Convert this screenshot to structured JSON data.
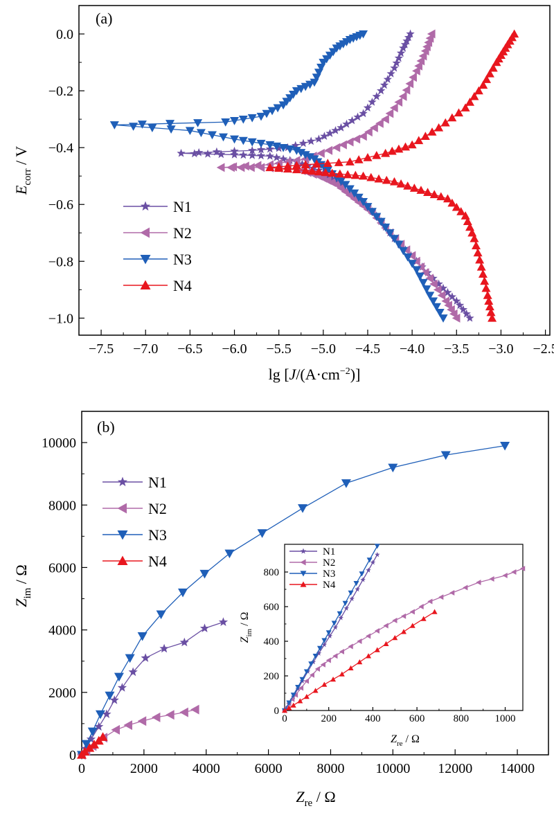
{
  "panel_a": {
    "label": "(a)",
    "ylabel_main": "E",
    "ylabel_sub": "corr",
    "ylabel_tail": " / V",
    "xlabel_pre": "lg [",
    "xlabel_J": "J",
    "xlabel_mid": "/(A·cm",
    "xlabel_sup": "−2",
    "xlabel_post": ")]",
    "xticks": [
      "−7.5",
      "−7.0",
      "−6.5",
      "−6.0",
      "−5.5",
      "−5.0",
      "−4.5",
      "−4.0",
      "−3.5",
      "−3.0",
      "−2.5"
    ],
    "yticks": [
      "0.0",
      "−0.2",
      "−0.4",
      "−0.6",
      "−0.8",
      "−1.0"
    ]
  },
  "panel_b": {
    "label": "(b)",
    "ylabel_main": "Z",
    "ylabel_sub": "im",
    "ylabel_tail": " / Ω",
    "xlabel_main": "Z",
    "xlabel_sub": "re",
    "xlabel_tail": " / Ω",
    "xticks": [
      "0",
      "2000",
      "4000",
      "6000",
      "8000",
      "10000",
      "12000",
      "14000"
    ],
    "yticks": [
      "0",
      "2000",
      "4000",
      "6000",
      "8000",
      "10000"
    ],
    "inset": {
      "xticks": [
        "0",
        "200",
        "400",
        "600",
        "800",
        "1000"
      ],
      "yticks": [
        "0",
        "200",
        "400",
        "600",
        "800"
      ],
      "ylabel_main": "Z",
      "ylabel_sub": "im",
      "ylabel_tail": " / Ω",
      "xlabel_main": "Z",
      "xlabel_sub": "re",
      "xlabel_tail": " / Ω"
    }
  },
  "legend": [
    "N1",
    "N2",
    "N3",
    "N4"
  ],
  "colors": {
    "N1": "#6a4fa3",
    "N2": "#b06aa8",
    "N3": "#1f5fb8",
    "N4": "#e8161e"
  },
  "markers": {
    "N1": "star",
    "N2": "triangle-left",
    "N3": "triangle-down",
    "N4": "triangle-up"
  },
  "chart_data": [
    {
      "type": "line",
      "panel": "(a)",
      "xlabel": "lg [J/(A·cm−2)]",
      "ylabel": "Ecorr / V",
      "xlim": [
        -7.75,
        -2.45
      ],
      "ylim": [
        -1.06,
        0.1
      ],
      "legend_position": "left-middle",
      "series": [
        {
          "name": "N1",
          "points": [
            [
              -4.02,
              0.0
            ],
            [
              -4.1,
              -0.05
            ],
            [
              -4.2,
              -0.12
            ],
            [
              -4.35,
              -0.2
            ],
            [
              -4.55,
              -0.28
            ],
            [
              -4.8,
              -0.33
            ],
            [
              -5.05,
              -0.37
            ],
            [
              -5.4,
              -0.4
            ],
            [
              -5.8,
              -0.41
            ],
            [
              -6.6,
              -0.42
            ],
            [
              -6.0,
              -0.425
            ],
            [
              -5.6,
              -0.43
            ],
            [
              -5.3,
              -0.45
            ],
            [
              -5.05,
              -0.48
            ],
            [
              -4.85,
              -0.52
            ],
            [
              -4.6,
              -0.58
            ],
            [
              -4.4,
              -0.64
            ],
            [
              -4.2,
              -0.72
            ],
            [
              -3.95,
              -0.8
            ],
            [
              -3.7,
              -0.88
            ],
            [
              -3.5,
              -0.94
            ],
            [
              -3.35,
              -1.0
            ]
          ]
        },
        {
          "name": "N2",
          "points": [
            [
              -3.78,
              0.0
            ],
            [
              -3.85,
              -0.06
            ],
            [
              -3.95,
              -0.13
            ],
            [
              -4.1,
              -0.22
            ],
            [
              -4.3,
              -0.3
            ],
            [
              -4.55,
              -0.36
            ],
            [
              -4.85,
              -0.4
            ],
            [
              -5.2,
              -0.44
            ],
            [
              -5.6,
              -0.46
            ],
            [
              -6.15,
              -0.47
            ],
            [
              -5.7,
              -0.47
            ],
            [
              -5.3,
              -0.475
            ],
            [
              -5.05,
              -0.5
            ],
            [
              -4.85,
              -0.53
            ],
            [
              -4.65,
              -0.58
            ],
            [
              -4.45,
              -0.63
            ],
            [
              -4.25,
              -0.7
            ],
            [
              -4.0,
              -0.78
            ],
            [
              -3.8,
              -0.86
            ],
            [
              -3.62,
              -0.94
            ],
            [
              -3.5,
              -1.0
            ]
          ]
        },
        {
          "name": "N3",
          "points": [
            [
              -4.55,
              0.0
            ],
            [
              -4.7,
              -0.02
            ],
            [
              -4.85,
              -0.05
            ],
            [
              -5.0,
              -0.1
            ],
            [
              -5.1,
              -0.17
            ],
            [
              -5.3,
              -0.2
            ],
            [
              -5.45,
              -0.25
            ],
            [
              -5.7,
              -0.29
            ],
            [
              -6.1,
              -0.31
            ],
            [
              -7.35,
              -0.32
            ],
            [
              -6.5,
              -0.34
            ],
            [
              -6.0,
              -0.37
            ],
            [
              -5.6,
              -0.39
            ],
            [
              -5.3,
              -0.41
            ],
            [
              -5.1,
              -0.44
            ],
            [
              -4.95,
              -0.48
            ],
            [
              -4.75,
              -0.53
            ],
            [
              -4.55,
              -0.59
            ],
            [
              -4.35,
              -0.66
            ],
            [
              -4.15,
              -0.74
            ],
            [
              -3.95,
              -0.83
            ],
            [
              -3.8,
              -0.92
            ],
            [
              -3.65,
              -1.0
            ]
          ]
        },
        {
          "name": "N4",
          "points": [
            [
              -2.85,
              0.0
            ],
            [
              -2.95,
              -0.05
            ],
            [
              -3.05,
              -0.1
            ],
            [
              -3.2,
              -0.18
            ],
            [
              -3.4,
              -0.26
            ],
            [
              -3.7,
              -0.33
            ],
            [
              -4.0,
              -0.39
            ],
            [
              -4.3,
              -0.42
            ],
            [
              -4.7,
              -0.45
            ],
            [
              -5.2,
              -0.46
            ],
            [
              -5.6,
              -0.47
            ],
            [
              -5.2,
              -0.48
            ],
            [
              -4.9,
              -0.49
            ],
            [
              -4.55,
              -0.5
            ],
            [
              -4.2,
              -0.52
            ],
            [
              -3.9,
              -0.55
            ],
            [
              -3.6,
              -0.58
            ],
            [
              -3.4,
              -0.64
            ],
            [
              -3.3,
              -0.72
            ],
            [
              -3.22,
              -0.82
            ],
            [
              -3.15,
              -0.92
            ],
            [
              -3.1,
              -1.0
            ]
          ]
        }
      ]
    },
    {
      "type": "line",
      "panel": "(b)",
      "xlabel": "Zre / Ω",
      "ylabel": "Zim / Ω",
      "xlim": [
        0,
        15000
      ],
      "ylim": [
        0,
        11000
      ],
      "legend_position": "top-left",
      "series": [
        {
          "name": "N1",
          "points": [
            [
              0,
              0
            ],
            [
              120,
              200
            ],
            [
              300,
              500
            ],
            [
              550,
              900
            ],
            [
              800,
              1300
            ],
            [
              1050,
              1750
            ],
            [
              1300,
              2150
            ],
            [
              1650,
              2650
            ],
            [
              2050,
              3100
            ],
            [
              2650,
              3400
            ],
            [
              3300,
              3600
            ],
            [
              3950,
              4050
            ],
            [
              4550,
              4250
            ]
          ]
        },
        {
          "name": "N2",
          "points": [
            [
              0,
              0
            ],
            [
              150,
              120
            ],
            [
              350,
              280
            ],
            [
              700,
              550
            ],
            [
              1100,
              800
            ],
            [
              1500,
              950
            ],
            [
              1950,
              1080
            ],
            [
              2400,
              1200
            ],
            [
              2850,
              1280
            ],
            [
              3300,
              1360
            ],
            [
              3650,
              1450
            ]
          ]
        },
        {
          "name": "N3",
          "points": [
            [
              0,
              0
            ],
            [
              150,
              350
            ],
            [
              350,
              750
            ],
            [
              600,
              1300
            ],
            [
              900,
              1900
            ],
            [
              1200,
              2500
            ],
            [
              1550,
              3100
            ],
            [
              1950,
              3800
            ],
            [
              2550,
              4500
            ],
            [
              3250,
              5200
            ],
            [
              3950,
              5800
            ],
            [
              4750,
              6450
            ],
            [
              5800,
              7100
            ],
            [
              7100,
              7900
            ],
            [
              8500,
              8700
            ],
            [
              10000,
              9200
            ],
            [
              11700,
              9600
            ],
            [
              13600,
              9900
            ]
          ]
        },
        {
          "name": "N4",
          "points": [
            [
              0,
              0
            ],
            [
              100,
              100
            ],
            [
              250,
              220
            ],
            [
              400,
              330
            ],
            [
              550,
              450
            ],
            [
              680,
              570
            ]
          ]
        }
      ]
    },
    {
      "type": "line",
      "panel": "(b) inset",
      "xlabel": "Zre / Ω",
      "ylabel": "Zim / Ω",
      "xlim": [
        0,
        1080
      ],
      "ylim": [
        0,
        960
      ],
      "legend_position": "top-left",
      "series": [
        {
          "name": "N1",
          "points": [
            [
              0,
              0
            ],
            [
              40,
              80
            ],
            [
              80,
              170
            ],
            [
              130,
              280
            ],
            [
              180,
              380
            ],
            [
              230,
              480
            ],
            [
              280,
              590
            ],
            [
              330,
              700
            ],
            [
              380,
              810
            ],
            [
              420,
              900
            ]
          ]
        },
        {
          "name": "N2",
          "points": [
            [
              0,
              0
            ],
            [
              20,
              40
            ],
            [
              50,
              90
            ],
            [
              100,
              170
            ],
            [
              150,
              240
            ],
            [
              200,
              290
            ],
            [
              260,
              340
            ],
            [
              340,
              400
            ],
            [
              420,
              460
            ],
            [
              500,
              520
            ],
            [
              580,
              570
            ],
            [
              660,
              630
            ],
            [
              760,
              680
            ],
            [
              880,
              740
            ],
            [
              1000,
              780
            ],
            [
              1080,
              820
            ]
          ]
        },
        {
          "name": "N3",
          "points": [
            [
              0,
              0
            ],
            [
              40,
              90
            ],
            [
              80,
              180
            ],
            [
              120,
              270
            ],
            [
              160,
              360
            ],
            [
              200,
              450
            ],
            [
              250,
              560
            ],
            [
              300,
              680
            ],
            [
              350,
              790
            ],
            [
              420,
              950
            ]
          ]
        },
        {
          "name": "N4",
          "points": [
            [
              0,
              0
            ],
            [
              40,
              30
            ],
            [
              100,
              80
            ],
            [
              180,
              150
            ],
            [
              260,
              210
            ],
            [
              340,
              280
            ],
            [
              420,
              350
            ],
            [
              500,
              420
            ],
            [
              580,
              490
            ],
            [
              680,
              570
            ]
          ]
        }
      ]
    }
  ]
}
